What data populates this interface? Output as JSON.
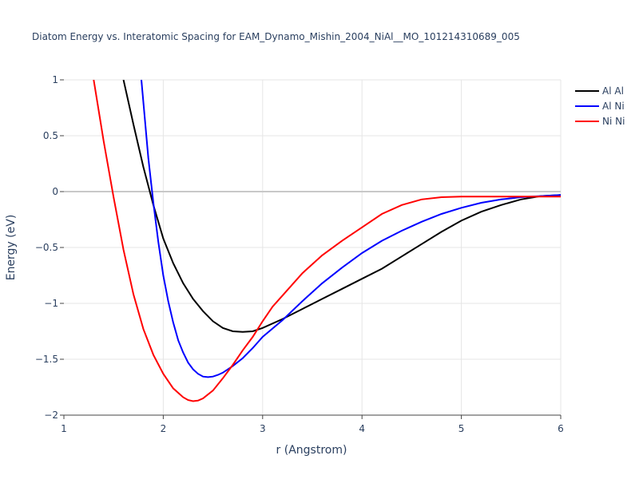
{
  "chart_data": {
    "type": "line",
    "title": "Diatom Energy vs. Interatomic Spacing for EAM_Dynamo_Mishin_2004_NiAl__MO_101214310689_005",
    "xlabel": "r (Angstrom)",
    "ylabel": "Energy (eV)",
    "xlim": [
      1,
      6
    ],
    "ylim": [
      -2,
      1
    ],
    "x_ticks": [
      1,
      2,
      3,
      4,
      5,
      6
    ],
    "x_tick_labels": [
      "1",
      "2",
      "3",
      "4",
      "5",
      "6"
    ],
    "y_ticks": [
      1,
      0.5,
      0,
      -0.5,
      -1,
      -1.5,
      -2
    ],
    "y_tick_labels": [
      "1",
      "0.5",
      "0",
      "−0.5",
      "−1",
      "−1.5",
      "−2"
    ],
    "grid": true,
    "legend_position": "top-right",
    "series": [
      {
        "name": "Al Al",
        "color": "#000000",
        "x": [
          1.6,
          1.7,
          1.8,
          1.9,
          2.0,
          2.1,
          2.2,
          2.3,
          2.4,
          2.5,
          2.6,
          2.7,
          2.8,
          2.9,
          3.0,
          3.2,
          3.4,
          3.6,
          3.8,
          4.0,
          4.2,
          4.4,
          4.6,
          4.8,
          5.0,
          5.2,
          5.4,
          5.6,
          5.8,
          6.0
        ],
        "y": [
          1.0,
          0.6,
          0.22,
          -0.12,
          -0.42,
          -0.64,
          -0.82,
          -0.96,
          -1.07,
          -1.16,
          -1.22,
          -1.25,
          -1.255,
          -1.25,
          -1.22,
          -1.14,
          -1.05,
          -0.96,
          -0.87,
          -0.78,
          -0.69,
          -0.58,
          -0.47,
          -0.36,
          -0.26,
          -0.18,
          -0.12,
          -0.07,
          -0.04,
          -0.03
        ]
      },
      {
        "name": "Al Ni",
        "color": "#0000ff",
        "x": [
          1.78,
          1.85,
          1.9,
          1.95,
          2.0,
          2.05,
          2.1,
          2.15,
          2.2,
          2.25,
          2.3,
          2.35,
          2.4,
          2.45,
          2.5,
          2.55,
          2.6,
          2.7,
          2.8,
          2.9,
          3.0,
          3.2,
          3.4,
          3.6,
          3.8,
          4.0,
          4.2,
          4.4,
          4.6,
          4.8,
          5.0,
          5.2,
          5.4,
          5.6,
          5.8,
          6.0
        ],
        "y": [
          1.0,
          0.3,
          -0.1,
          -0.45,
          -0.75,
          -0.98,
          -1.17,
          -1.33,
          -1.44,
          -1.53,
          -1.59,
          -1.63,
          -1.655,
          -1.66,
          -1.655,
          -1.64,
          -1.62,
          -1.56,
          -1.49,
          -1.4,
          -1.3,
          -1.15,
          -0.98,
          -0.82,
          -0.68,
          -0.55,
          -0.44,
          -0.35,
          -0.27,
          -0.2,
          -0.145,
          -0.1,
          -0.07,
          -0.05,
          -0.04,
          -0.03
        ]
      },
      {
        "name": "Ni Ni",
        "color": "#ff0000",
        "x": [
          1.3,
          1.4,
          1.5,
          1.6,
          1.7,
          1.8,
          1.9,
          2.0,
          2.1,
          2.2,
          2.25,
          2.3,
          2.35,
          2.4,
          2.5,
          2.6,
          2.7,
          2.8,
          2.9,
          3.0,
          3.1,
          3.2,
          3.4,
          3.6,
          3.8,
          4.0,
          4.2,
          4.4,
          4.6,
          4.8,
          5.0,
          5.2,
          5.4,
          5.6,
          5.8,
          6.0
        ],
        "y": [
          1.0,
          0.45,
          -0.05,
          -0.52,
          -0.92,
          -1.23,
          -1.46,
          -1.63,
          -1.76,
          -1.84,
          -1.865,
          -1.875,
          -1.87,
          -1.85,
          -1.78,
          -1.67,
          -1.55,
          -1.42,
          -1.3,
          -1.16,
          -1.03,
          -0.93,
          -0.73,
          -0.57,
          -0.44,
          -0.32,
          -0.2,
          -0.12,
          -0.07,
          -0.05,
          -0.045,
          -0.045,
          -0.045,
          -0.045,
          -0.045,
          -0.045
        ]
      }
    ]
  }
}
